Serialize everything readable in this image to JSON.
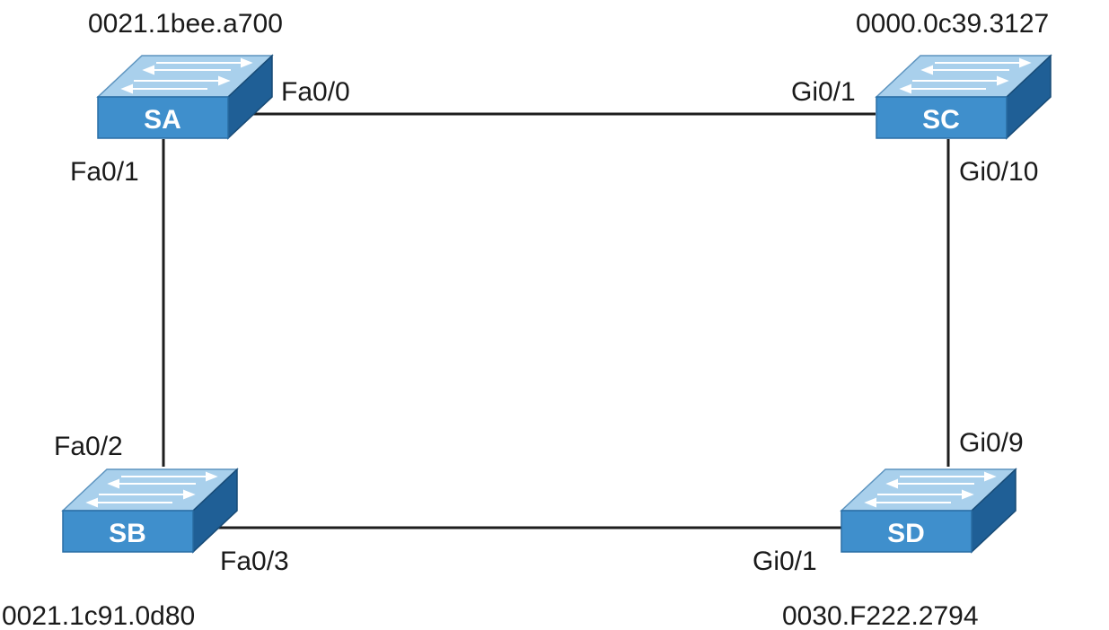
{
  "switches": {
    "sa": {
      "name": "SA",
      "mac": "0021.1bee.a700"
    },
    "sb": {
      "name": "SB",
      "mac": "0021.1c91.0d80"
    },
    "sc": {
      "name": "SC",
      "mac": "0000.0c39.3127"
    },
    "sd": {
      "name": "SD",
      "mac": "0030.F222.2794"
    }
  },
  "ports": {
    "sa_fa00": "Fa0/0",
    "sa_fa01": "Fa0/1",
    "sb_fa02": "Fa0/2",
    "sb_fa03": "Fa0/3",
    "sc_gi01": "Gi0/1",
    "sc_gi010": "Gi0/10",
    "sd_gi09": "Gi0/9",
    "sd_gi01": "Gi0/1"
  },
  "colors": {
    "switch_front": "#3f8fcc",
    "switch_top": "#a9d0ec",
    "switch_side": "#1f5f96",
    "link": "#1e1e1e"
  }
}
